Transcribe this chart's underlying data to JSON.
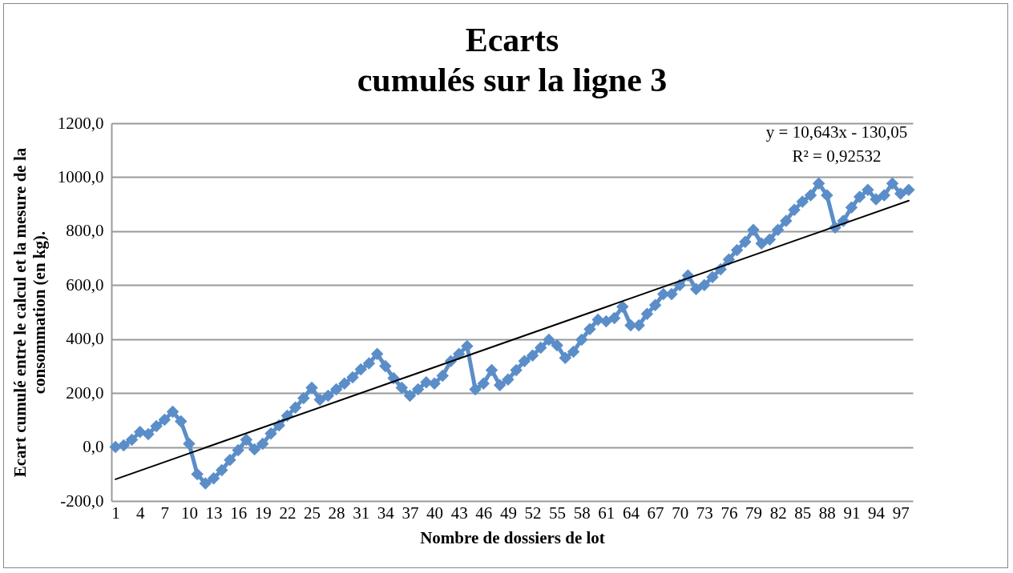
{
  "chart_data": {
    "type": "line",
    "title": "Ecarts\ncumulés sur la ligne 3",
    "xlabel": "Nombre de dossiers de lot",
    "ylabel": "Ecart cumulé entre le calcul et la mesure de la\nconsommation (en kg).",
    "x": [
      1,
      2,
      3,
      4,
      5,
      6,
      7,
      8,
      9,
      10,
      11,
      12,
      13,
      14,
      15,
      16,
      17,
      18,
      19,
      20,
      21,
      22,
      23,
      24,
      25,
      26,
      27,
      28,
      29,
      30,
      31,
      32,
      33,
      34,
      35,
      36,
      37,
      38,
      39,
      40,
      41,
      42,
      43,
      44,
      45,
      46,
      47,
      48,
      49,
      50,
      51,
      52,
      53,
      54,
      55,
      56,
      57,
      58,
      59,
      60,
      61,
      62,
      63,
      64,
      65,
      66,
      67,
      68,
      69,
      70,
      71,
      72,
      73,
      74,
      75,
      76,
      77,
      78,
      79,
      80,
      81,
      82,
      83,
      84,
      85,
      86,
      87,
      88,
      89,
      90,
      91,
      92,
      93,
      94,
      95,
      96,
      97,
      98
    ],
    "xlim": [
      0.5,
      98.5
    ],
    "xticks": [
      1,
      4,
      7,
      10,
      13,
      16,
      19,
      22,
      25,
      28,
      31,
      34,
      37,
      40,
      43,
      46,
      49,
      52,
      55,
      58,
      61,
      64,
      67,
      70,
      73,
      76,
      79,
      82,
      85,
      88,
      91,
      94,
      97
    ],
    "ylim": [
      -200,
      1200
    ],
    "yticks": [
      {
        "value": -200,
        "label": "-200,0"
      },
      {
        "value": 0,
        "label": "0,0"
      },
      {
        "value": 200,
        "label": "200,0"
      },
      {
        "value": 400,
        "label": "400,0"
      },
      {
        "value": 600,
        "label": "600,0"
      },
      {
        "value": 800,
        "label": "800,0"
      },
      {
        "value": 1000,
        "label": "1000,0"
      },
      {
        "value": 1200,
        "label": "1200,0"
      }
    ],
    "grid": "y",
    "legend": false,
    "series": [
      {
        "color": "#5b8ec8",
        "marker": "diamond",
        "values": [
          0,
          6,
          27,
          56,
          48,
          77,
          101,
          131,
          95,
          12,
          -101,
          -135,
          -116,
          -86,
          -48,
          -12,
          27,
          -9,
          12,
          50,
          80,
          116,
          146,
          181,
          220,
          175,
          190,
          214,
          235,
          258,
          288,
          310,
          345,
          300,
          255,
          220,
          190,
          214,
          240,
          235,
          264,
          318,
          345,
          374,
          214,
          235,
          285,
          229,
          250,
          285,
          318,
          339,
          368,
          398,
          377,
          330,
          353,
          398,
          437,
          472,
          466,
          478,
          520,
          451,
          451,
          493,
          526,
          567,
          567,
          600,
          636,
          585,
          600,
          630,
          659,
          695,
          730,
          760,
          805,
          754,
          769,
          805,
          838,
          879,
          909,
          933,
          977,
          933,
          814,
          838,
          888,
          927,
          953,
          918,
          933,
          977,
          939,
          953
        ]
      },
      {
        "color": "#000000",
        "marker": "none",
        "x": [
          1,
          98
        ],
        "values": [
          -119.4,
          913
        ]
      }
    ],
    "annotations": [
      "y = 10,643x - 130,05",
      "R² = 0,92532"
    ]
  }
}
